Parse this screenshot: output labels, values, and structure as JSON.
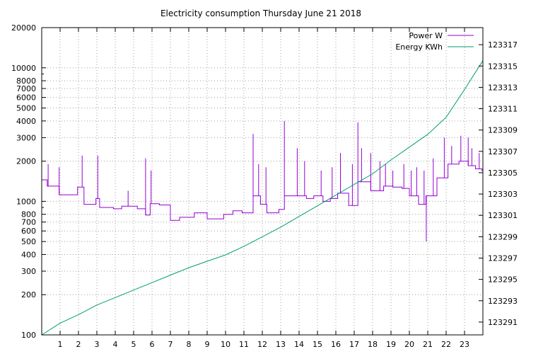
{
  "chart_data": {
    "type": "line",
    "title": "Electricity consumption Thursday June 21 2018",
    "legend_position": "top-right",
    "grid": true,
    "x": {
      "range": [
        0,
        24
      ],
      "ticks": [
        1,
        2,
        3,
        4,
        5,
        6,
        7,
        8,
        9,
        10,
        11,
        12,
        13,
        14,
        15,
        16,
        17,
        18,
        19,
        20,
        21,
        22,
        23
      ],
      "tick_labels": [
        "1",
        "2",
        "3",
        "4",
        "5",
        "6",
        "7",
        "8",
        "9",
        "10",
        "11",
        "12",
        "13",
        "14",
        "15",
        "16",
        "17",
        "18",
        "19",
        "20",
        "21",
        "22",
        "23"
      ]
    },
    "y_left": {
      "scale": "log",
      "range": [
        100,
        20000
      ],
      "ticks": [
        100,
        200,
        300,
        400,
        500,
        600,
        700,
        800,
        1000,
        2000,
        3000,
        4000,
        5000,
        6000,
        7000,
        8000,
        10000,
        20000
      ],
      "tick_labels": [
        "100",
        "200",
        "300",
        "400",
        "500",
        "600",
        "700",
        "800",
        "1000",
        "2000",
        "3000",
        "4000",
        "5000",
        "6000",
        "7000",
        "8000",
        "10000",
        "20000"
      ]
    },
    "y_right": {
      "scale": "linear",
      "range": [
        123289.8,
        123318.6
      ],
      "ticks": [
        123291,
        123293,
        123295,
        123297,
        123299,
        123301,
        123303,
        123305,
        123307,
        123309,
        123311,
        123313,
        123315,
        123317
      ],
      "tick_labels": [
        "123291",
        "123293",
        "123295",
        "123297",
        "123299",
        "123301",
        "123303",
        "123305",
        "123307",
        "123309",
        "123311",
        "123313",
        "123315",
        "123317"
      ]
    },
    "series": [
      {
        "name": "Power W",
        "color": "#9400d3",
        "axis": "left",
        "step": true,
        "points": [
          [
            0.0,
            1450
          ],
          [
            0.3,
            1300
          ],
          [
            0.95,
            1120
          ],
          [
            1.95,
            1280
          ],
          [
            2.3,
            950
          ],
          [
            2.95,
            1050
          ],
          [
            3.15,
            900
          ],
          [
            3.9,
            880
          ],
          [
            4.35,
            920
          ],
          [
            5.2,
            880
          ],
          [
            5.65,
            790
          ],
          [
            5.9,
            960
          ],
          [
            6.4,
            940
          ],
          [
            7.0,
            720
          ],
          [
            7.5,
            760
          ],
          [
            8.3,
            820
          ],
          [
            9.0,
            740
          ],
          [
            9.9,
            800
          ],
          [
            10.4,
            850
          ],
          [
            10.9,
            820
          ],
          [
            11.5,
            1100
          ],
          [
            11.9,
            950
          ],
          [
            12.25,
            820
          ],
          [
            12.9,
            870
          ],
          [
            13.2,
            1100
          ],
          [
            13.8,
            1100
          ],
          [
            14.4,
            1050
          ],
          [
            14.8,
            1100
          ],
          [
            15.3,
            1000
          ],
          [
            15.7,
            1050
          ],
          [
            16.1,
            1150
          ],
          [
            16.7,
            930
          ],
          [
            17.2,
            1400
          ],
          [
            17.9,
            1200
          ],
          [
            18.6,
            1300
          ],
          [
            19.1,
            1280
          ],
          [
            19.6,
            1250
          ],
          [
            20.0,
            1100
          ],
          [
            20.5,
            950
          ],
          [
            20.9,
            1100
          ],
          [
            21.5,
            1500
          ],
          [
            22.1,
            1900
          ],
          [
            22.7,
            2000
          ],
          [
            23.2,
            1850
          ],
          [
            23.6,
            1750
          ],
          [
            23.95,
            1700
          ]
        ],
        "spikes": [
          [
            0.35,
            1900
          ],
          [
            0.95,
            1800
          ],
          [
            2.2,
            2200
          ],
          [
            3.05,
            2200
          ],
          [
            4.7,
            1200
          ],
          [
            5.65,
            2100
          ],
          [
            5.95,
            1700
          ],
          [
            11.5,
            3200
          ],
          [
            11.8,
            1900
          ],
          [
            12.2,
            1800
          ],
          [
            13.2,
            4000
          ],
          [
            13.9,
            2500
          ],
          [
            14.3,
            2000
          ],
          [
            15.2,
            1700
          ],
          [
            15.8,
            1800
          ],
          [
            16.25,
            2300
          ],
          [
            16.9,
            1900
          ],
          [
            17.2,
            3900
          ],
          [
            17.4,
            2500
          ],
          [
            17.9,
            2300
          ],
          [
            18.4,
            2000
          ],
          [
            18.7,
            1900
          ],
          [
            19.1,
            1700
          ],
          [
            19.7,
            1900
          ],
          [
            20.1,
            1700
          ],
          [
            20.4,
            1800
          ],
          [
            20.8,
            1700
          ],
          [
            20.92,
            500
          ],
          [
            21.3,
            2100
          ],
          [
            21.9,
            3000
          ],
          [
            22.3,
            2600
          ],
          [
            22.8,
            3100
          ],
          [
            23.2,
            3000
          ],
          [
            23.4,
            2500
          ],
          [
            23.8,
            2300
          ]
        ]
      },
      {
        "name": "Energy KWh",
        "color": "#009e73",
        "axis": "right",
        "step": false,
        "points": [
          [
            0.0,
            123289.8
          ],
          [
            1.0,
            123290.9
          ],
          [
            2.0,
            123291.7
          ],
          [
            3.0,
            123292.6
          ],
          [
            4.0,
            123293.3
          ],
          [
            5.0,
            123294.0
          ],
          [
            6.0,
            123294.7
          ],
          [
            7.0,
            123295.4
          ],
          [
            8.0,
            123296.1
          ],
          [
            9.0,
            123296.7
          ],
          [
            10.0,
            123297.3
          ],
          [
            11.0,
            123298.1
          ],
          [
            12.0,
            123299.0
          ],
          [
            13.0,
            123299.9
          ],
          [
            14.0,
            123300.9
          ],
          [
            15.0,
            123301.9
          ],
          [
            16.0,
            123302.9
          ],
          [
            17.0,
            123303.9
          ],
          [
            18.0,
            123304.9
          ],
          [
            19.0,
            123306.2
          ],
          [
            20.0,
            123307.4
          ],
          [
            21.0,
            123308.6
          ],
          [
            22.0,
            123310.2
          ],
          [
            23.0,
            123312.8
          ],
          [
            24.0,
            123315.5
          ]
        ]
      }
    ]
  }
}
